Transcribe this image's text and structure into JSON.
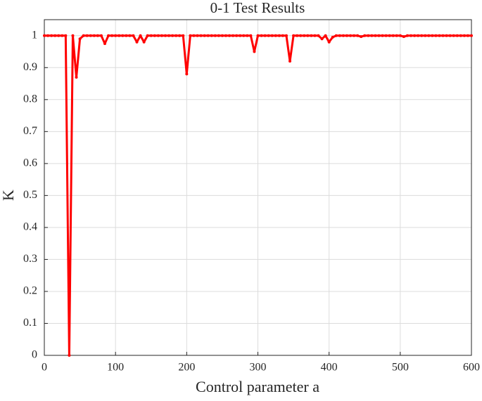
{
  "chart_data": {
    "type": "line",
    "title": "0-1 Test Results",
    "x_label": "Control parameter a",
    "y_label": "K",
    "x": [
      0,
      5,
      10,
      15,
      20,
      25,
      30,
      35,
      40,
      45,
      50,
      55,
      60,
      65,
      70,
      75,
      80,
      85,
      90,
      95,
      100,
      105,
      110,
      115,
      120,
      125,
      130,
      135,
      140,
      145,
      150,
      155,
      160,
      165,
      170,
      175,
      180,
      185,
      190,
      195,
      200,
      205,
      210,
      215,
      220,
      225,
      230,
      235,
      240,
      245,
      250,
      255,
      260,
      265,
      270,
      275,
      280,
      285,
      290,
      295,
      300,
      305,
      310,
      315,
      320,
      325,
      330,
      335,
      340,
      345,
      350,
      355,
      360,
      365,
      370,
      375,
      380,
      385,
      390,
      395,
      400,
      405,
      410,
      415,
      420,
      425,
      430,
      435,
      440,
      445,
      450,
      455,
      460,
      465,
      470,
      475,
      480,
      485,
      490,
      495,
      500,
      505,
      510,
      515,
      520,
      525,
      530,
      535,
      540,
      545,
      550,
      555,
      560,
      565,
      570,
      575,
      580,
      585,
      590,
      595,
      600
    ],
    "series": [
      {
        "color": "#ff0000",
        "values": [
          1,
          1,
          1,
          1,
          1,
          1,
          1,
          0,
          1,
          0.87,
          0.99,
          1,
          1,
          1,
          1,
          1,
          1,
          0.975,
          1,
          1,
          1,
          1,
          1,
          1,
          1,
          1,
          0.98,
          1,
          0.98,
          1,
          1,
          1,
          1,
          1,
          1,
          1,
          1,
          1,
          1,
          1,
          0.88,
          1,
          1,
          1,
          1,
          1,
          1,
          1,
          1,
          1,
          1,
          1,
          1,
          1,
          1,
          1,
          1,
          1,
          1,
          0.95,
          1,
          1,
          1,
          1,
          1,
          1,
          1,
          1,
          1,
          0.92,
          1,
          1,
          1,
          1,
          1,
          1,
          1,
          1,
          0.99,
          1,
          0.98,
          0.995,
          1,
          1,
          1,
          1,
          1,
          1,
          1,
          0.997,
          1,
          1,
          1,
          1,
          1,
          1,
          1,
          1,
          1,
          1,
          1,
          0.997,
          1,
          1,
          1,
          1,
          1,
          1,
          1,
          1,
          1,
          1,
          1,
          1,
          1,
          1,
          1,
          1,
          1,
          1,
          1
        ]
      }
    ],
    "xlim": [
      0,
      600
    ],
    "xticks": [
      0,
      100,
      200,
      300,
      400,
      500,
      600
    ],
    "ylim": [
      0,
      1.05
    ],
    "yticks": [
      0,
      0.1,
      0.2,
      0.3,
      0.4,
      0.5,
      0.6,
      0.7,
      0.8,
      0.9,
      1
    ],
    "grid": true
  }
}
